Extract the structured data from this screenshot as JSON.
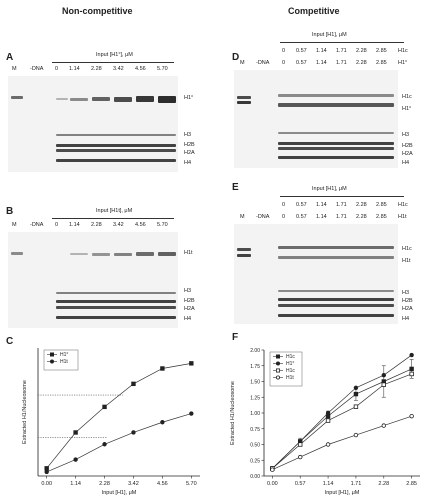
{
  "titles": {
    "left": "Non-competitive",
    "right": "Competitive"
  },
  "panels": {
    "A": {
      "letter": "A",
      "input_label": "Input [H1°], μM",
      "lane_labels": [
        "M",
        "-DNA"
      ],
      "concentrations": [
        "0",
        "1.14",
        "2.28",
        "3.42",
        "4.56",
        "5.70"
      ],
      "band_labels": [
        "H1°",
        "H3",
        "H2B",
        "H2A",
        "H4"
      ]
    },
    "B": {
      "letter": "B",
      "input_label": "Input [H1t], μM",
      "lane_labels": [
        "M",
        "-DNA"
      ],
      "concentrations": [
        "0",
        "1.14",
        "2.28",
        "3.42",
        "4.56",
        "5.70"
      ],
      "band_labels": [
        "H1t",
        "H3",
        "H2B",
        "H2A",
        "H4"
      ]
    },
    "D": {
      "letter": "D",
      "input_label": "Input [H1], μM",
      "lane_labels": [
        "M",
        "-DNA"
      ],
      "row1_label": "H1c",
      "row2_label": "H1°",
      "concentrations": [
        "0",
        "0.57",
        "1.14",
        "1.71",
        "2.28",
        "2.85"
      ],
      "band_labels": [
        "H1c",
        "H1°",
        "H3",
        "H2B",
        "H2A",
        "H4"
      ]
    },
    "E": {
      "letter": "E",
      "input_label": "Input [H1], μM",
      "lane_labels": [
        "M",
        "-DNA"
      ],
      "row1_label": "H1c",
      "row2_label": "H1t",
      "concentrations": [
        "0",
        "0.57",
        "1.14",
        "1.71",
        "2.28",
        "2.85"
      ],
      "band_labels": [
        "H1c",
        "H1t",
        "H3",
        "H2B",
        "H2A",
        "H4"
      ]
    },
    "C": {
      "letter": "C"
    },
    "F": {
      "letter": "F"
    }
  },
  "chart_data": [
    {
      "type": "line",
      "panel": "C",
      "title": "",
      "xlabel": "Input [H1], μM",
      "ylabel": "Extracted H1/Nucleosome",
      "x": [
        0,
        1.14,
        2.28,
        3.42,
        4.56,
        5.7
      ],
      "x_tick_labels": [
        "0.00",
        "1.14",
        "2.28",
        "3.42",
        "4.56",
        "5.70"
      ],
      "legend_position": "top-left",
      "series": [
        {
          "name": "H1°",
          "marker": "filled-square",
          "values": [
            0.15,
            0.85,
            1.35,
            1.8,
            2.1,
            2.2
          ]
        },
        {
          "name": "H1t",
          "marker": "filled-circle",
          "values": [
            0.08,
            0.32,
            0.62,
            0.85,
            1.05,
            1.22
          ]
        }
      ],
      "reference_lines": [
        {
          "y": 1.58,
          "x_end": 3.0
        },
        {
          "y": 0.75,
          "x_end": 2.4
        }
      ],
      "ylim": [
        0,
        2.5
      ]
    },
    {
      "type": "line",
      "panel": "F",
      "title": "",
      "xlabel": "Input [H1], μM",
      "ylabel": "Extracted H1/Nucleosome",
      "x": [
        0,
        0.57,
        1.14,
        1.71,
        2.28,
        2.85
      ],
      "x_tick_labels": [
        "0.00",
        "0.57",
        "1.14",
        "1.71",
        "2.28",
        "2.85"
      ],
      "y_tick_labels": [
        "0.00",
        "0.25",
        "0.50",
        "0.75",
        "1.00",
        "1.25",
        "1.50",
        "1.75",
        "2.00"
      ],
      "ylim": [
        0,
        2.0
      ],
      "legend_position": "top-left",
      "series": [
        {
          "name": "H1c",
          "marker": "filled-square",
          "values": [
            0.12,
            0.55,
            0.95,
            1.3,
            1.5,
            1.7
          ]
        },
        {
          "name": "H1°",
          "marker": "filled-circle",
          "values": [
            0.12,
            0.55,
            1.0,
            1.4,
            1.6,
            1.92
          ]
        },
        {
          "name": "H1c",
          "marker": "open-square",
          "values": [
            0.12,
            0.5,
            0.88,
            1.1,
            1.45,
            1.62
          ]
        },
        {
          "name": "H1t",
          "marker": "open-circle",
          "values": [
            0.1,
            0.3,
            0.5,
            0.65,
            0.8,
            0.95
          ]
        }
      ],
      "error_bars": [
        0,
        0.05,
        0.08,
        0.1,
        0.25,
        0.15
      ]
    }
  ]
}
